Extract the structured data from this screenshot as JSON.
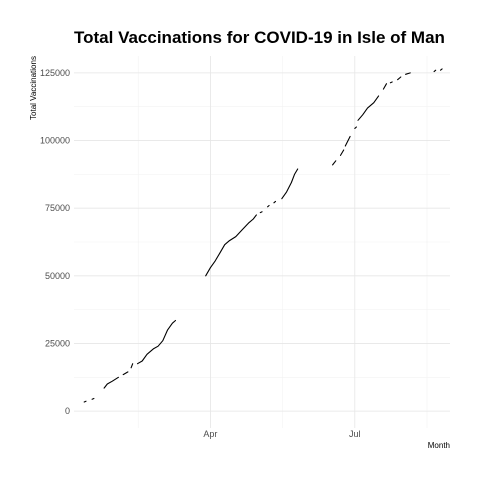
{
  "chart_data": {
    "type": "line",
    "title": "Total Vaccinations for COVID-19 in Isle of Man",
    "xlabel": "Month",
    "ylabel": "Total Vaccinations",
    "x_ticks": [
      {
        "label": "Apr",
        "date": "2021-04-01"
      },
      {
        "label": "Jul",
        "date": "2021-07-01"
      }
    ],
    "y_ticks": [
      0,
      25000,
      50000,
      75000,
      100000,
      125000
    ],
    "xlim": [
      "2021-01-05",
      "2021-08-30"
    ],
    "ylim": [
      -6250,
      131250
    ],
    "grid": true,
    "legend": "none",
    "series": [
      {
        "segments": [
          [
            [
              "2021-01-12",
              3500
            ]
          ],
          [
            [
              "2021-01-17",
              4500
            ]
          ],
          [
            [
              "2021-01-24",
              8500
            ],
            [
              "2021-01-26",
              10000
            ],
            [
              "2021-01-29",
              11000
            ],
            [
              "2021-02-02",
              12500
            ]
          ],
          [
            [
              "2021-02-05",
              13500
            ],
            [
              "2021-02-08",
              14500
            ]
          ],
          [
            [
              "2021-02-10",
              16000
            ],
            [
              "2021-02-11",
              17500
            ]
          ],
          [
            [
              "2021-02-14",
              17500
            ],
            [
              "2021-02-17",
              18500
            ],
            [
              "2021-02-20",
              21000
            ],
            [
              "2021-02-24",
              23000
            ],
            [
              "2021-02-27",
              24000
            ],
            [
              "2021-03-02",
              26000
            ],
            [
              "2021-03-05",
              30000
            ],
            [
              "2021-03-08",
              32500
            ],
            [
              "2021-03-10",
              33500
            ]
          ],
          [
            [
              "2021-03-29",
              50000
            ],
            [
              "2021-04-01",
              53000
            ],
            [
              "2021-04-04",
              55500
            ],
            [
              "2021-04-07",
              58500
            ],
            [
              "2021-04-10",
              61500
            ],
            [
              "2021-04-13",
              63000
            ],
            [
              "2021-04-17",
              64500
            ],
            [
              "2021-04-21",
              67000
            ],
            [
              "2021-04-25",
              69500
            ],
            [
              "2021-04-28",
              71000
            ],
            [
              "2021-04-30",
              72500
            ]
          ],
          [
            [
              "2021-05-03",
              73500
            ]
          ],
          [
            [
              "2021-05-07",
              75500
            ],
            [
              "2021-05-08",
              76000
            ]
          ],
          [
            [
              "2021-05-11",
              77000
            ],
            [
              "2021-05-12",
              77500
            ]
          ],
          [
            [
              "2021-05-16",
              78500
            ],
            [
              "2021-05-19",
              81000
            ],
            [
              "2021-05-22",
              84500
            ],
            [
              "2021-05-24",
              87500
            ],
            [
              "2021-05-26",
              89500
            ]
          ],
          [
            [
              "2021-06-17",
              91000
            ],
            [
              "2021-06-19",
              92500
            ]
          ],
          [
            [
              "2021-06-22",
              94500
            ],
            [
              "2021-06-24",
              96500
            ]
          ],
          [
            [
              "2021-06-25",
              98000
            ],
            [
              "2021-06-28",
              101500
            ]
          ],
          [
            [
              "2021-07-01",
              104500
            ],
            [
              "2021-07-02",
              105000
            ]
          ],
          [
            [
              "2021-07-03",
              107500
            ],
            [
              "2021-07-06",
              109500
            ],
            [
              "2021-07-09",
              112000
            ],
            [
              "2021-07-13",
              114000
            ],
            [
              "2021-07-16",
              116500
            ]
          ],
          [
            [
              "2021-07-19",
              119000
            ],
            [
              "2021-07-21",
              121000
            ]
          ],
          [
            [
              "2021-07-24",
              121500
            ]
          ],
          [
            [
              "2021-07-28",
              122500
            ],
            [
              "2021-07-30",
              123500
            ]
          ],
          [
            [
              "2021-08-02",
              124500
            ],
            [
              "2021-08-05",
              125000
            ]
          ],
          [
            [
              "2021-08-20",
              125500
            ],
            [
              "2021-08-21",
              126000
            ]
          ],
          [
            [
              "2021-08-24",
              126000
            ],
            [
              "2021-08-25",
              126500
            ]
          ]
        ]
      }
    ]
  }
}
